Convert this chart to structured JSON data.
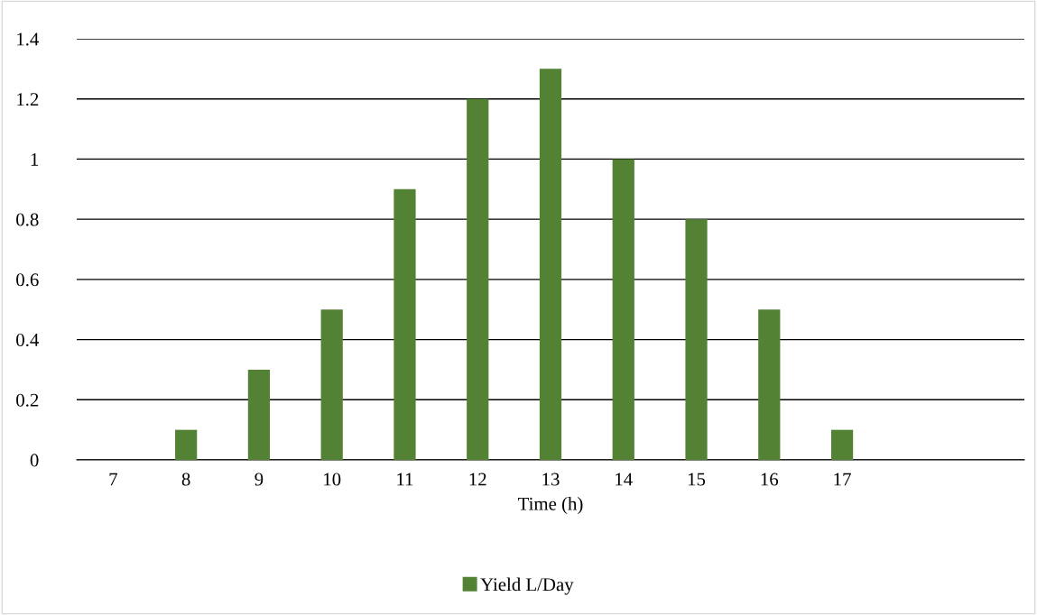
{
  "chart_data": {
    "type": "bar",
    "xlabel": "Time (h)",
    "categories": [
      "7",
      "8",
      "9",
      "10",
      "11",
      "12",
      "13",
      "14",
      "15",
      "16",
      "17",
      null,
      null
    ],
    "series": [
      {
        "name": "Yield L/Day",
        "color": "#548235",
        "values": [
          null,
          0.1,
          0.3,
          0.5,
          0.9,
          1.2,
          1.3,
          1.0,
          0.8,
          0.5,
          0.1,
          null,
          null
        ]
      }
    ],
    "ylim": [
      0,
      1.4
    ],
    "yticks": [
      0,
      0.2,
      0.4,
      0.6,
      0.8,
      1,
      1.2,
      1.4
    ],
    "grid": "y",
    "legend": "bottom"
  }
}
